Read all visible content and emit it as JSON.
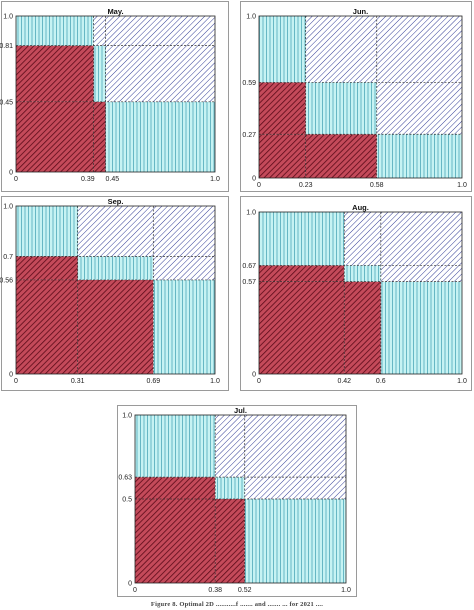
{
  "chart_data": [
    {
      "type": "mosaic",
      "title": "May.",
      "xlim": [
        0,
        1
      ],
      "ylim": [
        0,
        1
      ],
      "x_ticks": [
        "0",
        "0.39",
        "0.45",
        "1.0"
      ],
      "y_ticks": [
        "0",
        "0.45",
        "0.81",
        "1.0"
      ],
      "x_tick_values": [
        0,
        0.39,
        0.45,
        1.0
      ],
      "y_tick_values": [
        0,
        0.45,
        0.81,
        1.0
      ],
      "x_split": [
        0.39,
        0.45
      ],
      "y_split": [
        0.45,
        0.81
      ]
    },
    {
      "type": "mosaic",
      "title": "Jun.",
      "xlim": [
        0,
        1
      ],
      "ylim": [
        0,
        1
      ],
      "x_ticks": [
        "0",
        "0.23",
        "0.58",
        "1.0"
      ],
      "y_ticks": [
        "0",
        "0.27",
        "0.59",
        "1.0"
      ],
      "x_tick_values": [
        0,
        0.23,
        0.58,
        1.0
      ],
      "y_tick_values": [
        0,
        0.27,
        0.59,
        1.0
      ],
      "x_split": [
        0.23,
        0.58
      ],
      "y_split": [
        0.27,
        0.59
      ]
    },
    {
      "type": "mosaic",
      "title": "Sep.",
      "xlim": [
        0,
        1
      ],
      "ylim": [
        0,
        1
      ],
      "x_ticks": [
        "0",
        "0.31",
        "0.69",
        "1.0"
      ],
      "y_ticks": [
        "0",
        "0.56",
        "0.7",
        "1.0"
      ],
      "x_tick_values": [
        0,
        0.31,
        0.69,
        1.0
      ],
      "y_tick_values": [
        0,
        0.56,
        0.7,
        1.0
      ],
      "x_split": [
        0.31,
        0.69
      ],
      "y_split": [
        0.56,
        0.7
      ]
    },
    {
      "type": "mosaic",
      "title": "Aug.",
      "xlim": [
        0,
        1
      ],
      "ylim": [
        0,
        1
      ],
      "x_ticks": [
        "0",
        "0.42",
        "0.6",
        "1.0"
      ],
      "y_ticks": [
        "0",
        "0.57",
        "0.67",
        "1.0"
      ],
      "x_tick_values": [
        0,
        0.42,
        0.6,
        1.0
      ],
      "y_tick_values": [
        0,
        0.57,
        0.67,
        1.0
      ],
      "x_split": [
        0.42,
        0.6
      ],
      "y_split": [
        0.57,
        0.67
      ]
    },
    {
      "type": "mosaic",
      "title": "Jul.",
      "xlim": [
        0,
        1
      ],
      "ylim": [
        0,
        1
      ],
      "x_ticks": [
        "0",
        "0.38",
        "0.52",
        "1.0"
      ],
      "y_ticks": [
        "0",
        "0.5",
        "0.63",
        "1.0"
      ],
      "x_tick_values": [
        0,
        0.38,
        0.52,
        1.0
      ],
      "y_tick_values": [
        0,
        0.5,
        0.63,
        1.0
      ],
      "x_split": [
        0.38,
        0.52
      ],
      "y_split": [
        0.5,
        0.63
      ]
    }
  ],
  "caption": "Figure 8. Optimal 2D ...........f ....... and ....... ... for 2021 ....",
  "colors": {
    "red_fill": "#c44a5a",
    "red_hatch": "#5a0a18",
    "cyan_fill": "#c6f3f3",
    "cyan_line": "#4fa8b8",
    "blue_hatch": "#1e2a8c",
    "grid_line": "#333333"
  }
}
